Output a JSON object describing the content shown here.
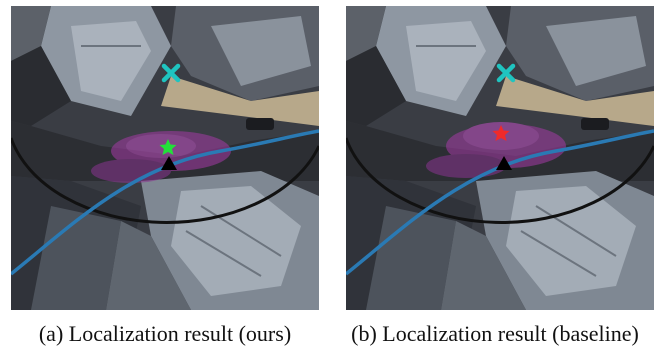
{
  "figure": {
    "panels": [
      {
        "id": "a",
        "caption": "(a) Localization result (ours)",
        "estimate_marker": {
          "shape": "star",
          "color": "#22e03a"
        },
        "target_marker": {
          "shape": "cross",
          "color": "#1fc4c0"
        },
        "particle_color": "#a43aa6"
      },
      {
        "id": "b",
        "caption": "(b) Localization result (baseline)",
        "estimate_marker": {
          "shape": "star",
          "color": "#f02a2a"
        },
        "target_marker": {
          "shape": "cross",
          "color": "#1fc4c0"
        },
        "particle_color": "#a43aa6"
      }
    ],
    "colors": {
      "trajectory": "#2a7ab4",
      "range_arc": "#111111",
      "roof_light": "#9aa3ad",
      "roof_dark": "#4a5059",
      "street": "#2c2e33",
      "shadow": "#1a1b1f"
    }
  }
}
